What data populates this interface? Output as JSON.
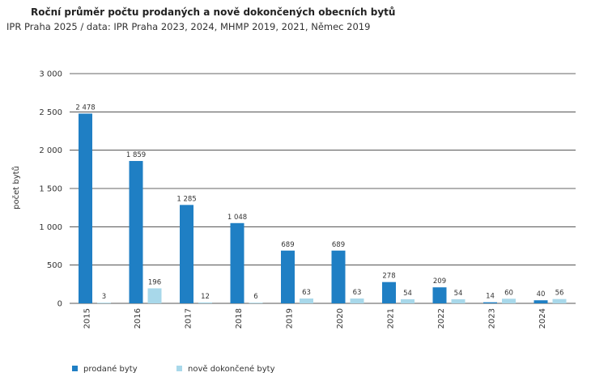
{
  "chart_data": {
    "type": "bar",
    "title": "Roční průměr počtu prodaných a nově dokončených obecních bytů",
    "subtitle": "IPR Praha 2025 / data: IPR Praha 2023, 2024, MHMP 2019, 2021, Němec 2019",
    "ylabel": "počet bytů",
    "xlabel": "",
    "ylim": [
      0,
      3000
    ],
    "yticks": [
      0,
      500,
      1000,
      1500,
      2000,
      2500,
      3000
    ],
    "ytick_labels": [
      "0",
      "500",
      "1 000",
      "1 500",
      "2 000",
      "2 500",
      "3 000"
    ],
    "categories": [
      "2015",
      "2016",
      "2017",
      "2018",
      "2019",
      "2020",
      "2021",
      "2022",
      "2023",
      "2024"
    ],
    "series": [
      {
        "name": "prodané byty",
        "color": "#1f7fc4",
        "values": [
          2478,
          1859,
          1285,
          1048,
          689,
          689,
          278,
          209,
          14,
          40
        ],
        "labels": [
          "2 478",
          "1 859",
          "1 285",
          "1 048",
          "689",
          "689",
          "278",
          "209",
          "14",
          "40"
        ]
      },
      {
        "name": "nově dokončené byty",
        "color": "#a8d8ea",
        "values": [
          3,
          196,
          12,
          6,
          63,
          63,
          54,
          54,
          60,
          56
        ],
        "labels": [
          "3",
          "196",
          "12",
          "6",
          "63",
          "63",
          "54",
          "54",
          "60",
          "56"
        ]
      }
    ],
    "grid": true,
    "legend_position": "bottom-left"
  }
}
